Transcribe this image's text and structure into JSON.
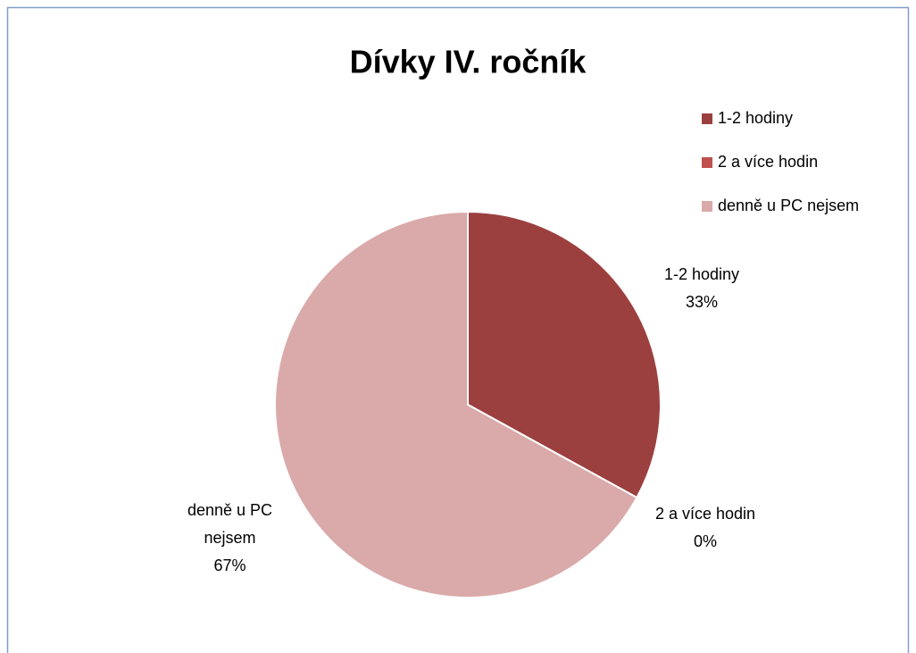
{
  "chart_data": {
    "type": "pie",
    "title": "Dívky IV. ročník",
    "categories": [
      "1-2 hodiny",
      "2 a více hodin",
      "denně u PC nejsem"
    ],
    "values": [
      33,
      0,
      67
    ],
    "value_labels": [
      "33%",
      "0%",
      "67%"
    ],
    "colors": [
      "#9c403f",
      "#c0504d",
      "#d9aaa9"
    ],
    "legend": "right"
  }
}
